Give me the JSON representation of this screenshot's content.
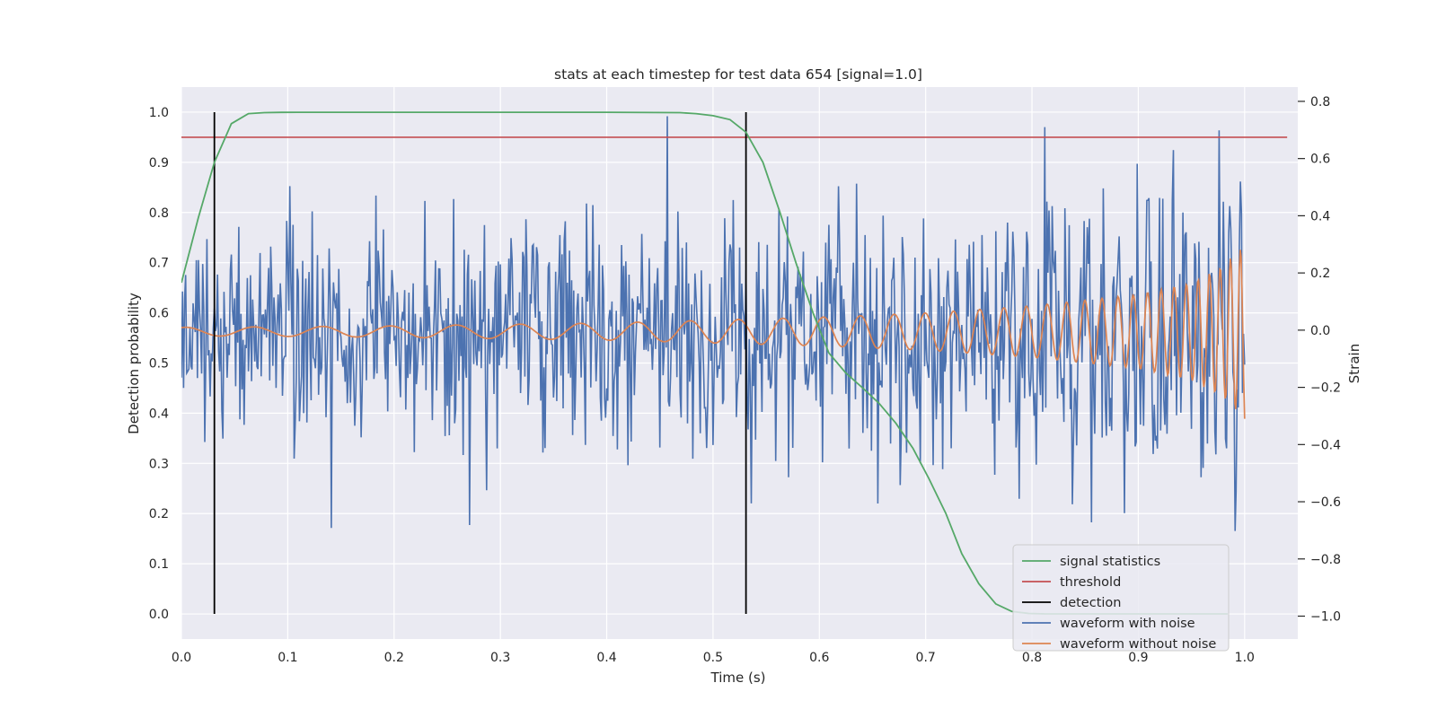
{
  "chart_data": {
    "type": "line",
    "title": "stats at each timestep for test data 654 [signal=1.0]",
    "xlabel": "Time (s)",
    "ylabel": "Detection probability",
    "y2label": "Strain",
    "xlim": [
      0.0,
      1.05
    ],
    "ylim": [
      -0.05,
      1.05
    ],
    "y2lim": [
      -1.08,
      0.85
    ],
    "xticks": [
      0.0,
      0.1,
      0.2,
      0.3,
      0.4,
      0.5,
      0.6,
      0.7,
      0.8,
      0.9,
      1.0
    ],
    "yticks": [
      0.0,
      0.1,
      0.2,
      0.3,
      0.4,
      0.5,
      0.6,
      0.7,
      0.8,
      0.9,
      1.0
    ],
    "y2ticks": [
      -1.0,
      -0.8,
      -0.6,
      -0.4,
      -0.2,
      0.0,
      0.2,
      0.4,
      0.6,
      0.8
    ],
    "xtick_labels": [
      "0.0",
      "0.1",
      "0.2",
      "0.3",
      "0.4",
      "0.5",
      "0.6",
      "0.7",
      "0.8",
      "0.9",
      "1.0"
    ],
    "ytick_labels": [
      "0.0",
      "0.1",
      "0.2",
      "0.3",
      "0.4",
      "0.5",
      "0.6",
      "0.7",
      "0.8",
      "0.9",
      "1.0"
    ],
    "y2tick_labels": [
      "−1.0",
      "−0.8",
      "−0.6",
      "−0.4",
      "−0.2",
      "0.0",
      "0.2",
      "0.4",
      "0.6",
      "0.8"
    ],
    "grid": true,
    "legend_position": "lower-right",
    "colors": {
      "signal_statistics": "#55a868",
      "threshold": "#c44e52",
      "detection": "#000000",
      "waveform_with_noise": "#4c72b0",
      "waveform_without_noise": "#dd8452",
      "plot_background": "#eaeaf2",
      "grid": "#ffffff"
    },
    "legend": [
      {
        "key": "signal_statistics",
        "label": "signal statistics"
      },
      {
        "key": "threshold",
        "label": "threshold"
      },
      {
        "key": "detection",
        "label": "detection"
      },
      {
        "key": "waveform_with_noise",
        "label": "waveform with noise"
      },
      {
        "key": "waveform_without_noise",
        "label": "waveform without noise"
      }
    ],
    "signal_statistics": {
      "axis": "left",
      "x": [
        0.0,
        0.016,
        0.031,
        0.047,
        0.063,
        0.078,
        0.094,
        0.109,
        0.125,
        0.2,
        0.3,
        0.4,
        0.469,
        0.484,
        0.5,
        0.516,
        0.531,
        0.547,
        0.563,
        0.578,
        0.594,
        0.609,
        0.625,
        0.641,
        0.656,
        0.672,
        0.688,
        0.703,
        0.719,
        0.734,
        0.75,
        0.766,
        0.781,
        0.797,
        0.813,
        0.828,
        0.844,
        0.86,
        0.875,
        0.891,
        0.906,
        0.922,
        0.938,
        0.953,
        0.969,
        0.984
      ],
      "y": [
        0.66,
        0.79,
        0.9,
        0.977,
        0.997,
        0.999,
        0.9995,
        0.9997,
        0.9997,
        0.9997,
        0.9997,
        0.9997,
        0.999,
        0.997,
        0.993,
        0.985,
        0.96,
        0.9,
        0.8,
        0.7,
        0.6,
        0.52,
        0.48,
        0.45,
        0.42,
        0.38,
        0.33,
        0.27,
        0.2,
        0.12,
        0.06,
        0.02,
        0.005,
        0.001,
        0.0,
        0.0,
        0.0,
        0.0,
        0.0,
        0.0,
        0.0,
        0.0,
        0.0,
        0.0,
        0.0,
        0.0
      ]
    },
    "threshold": {
      "axis": "left",
      "y": 0.95,
      "x": [
        0.0,
        1.04
      ]
    },
    "detections": {
      "axis": "left",
      "x": [
        0.031,
        0.531
      ],
      "y_range": [
        0.0,
        1.0
      ]
    },
    "waveform_with_noise": {
      "axis": "right",
      "x_range": [
        0.0,
        1.0
      ],
      "n_samples": 1000,
      "noise_std": 0.2,
      "y_min": -0.82,
      "y_max": 0.8
    },
    "waveform_without_noise": {
      "axis": "right",
      "x_range": [
        0.0,
        1.0
      ],
      "description_points_x": [
        0.0,
        0.1,
        0.2,
        0.3,
        0.4,
        0.5,
        0.6,
        0.7,
        0.8,
        0.9,
        0.95,
        0.98,
        0.993,
        1.0
      ],
      "envelope": [
        0.015,
        0.017,
        0.02,
        0.025,
        0.03,
        0.04,
        0.05,
        0.065,
        0.09,
        0.13,
        0.17,
        0.23,
        0.28,
        0.3
      ],
      "end_value": -0.31
    }
  }
}
